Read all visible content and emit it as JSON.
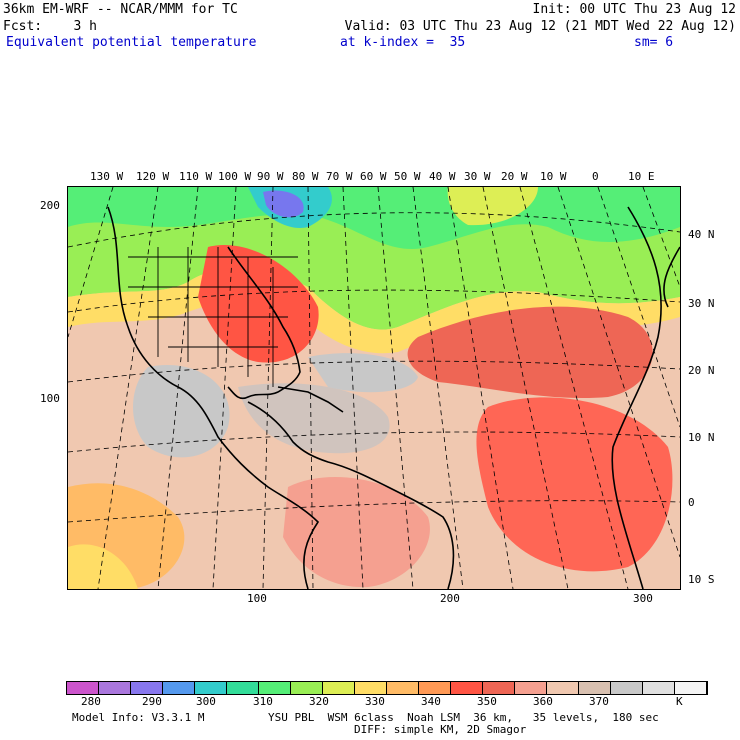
{
  "header": {
    "model_line": "36km EM-WRF -- NCAR/MMM for TC",
    "init_line": "Init: 00 UTC Thu 23 Aug 12",
    "fcst_line": "Fcst:    3 h",
    "valid_line": "Valid: 03 UTC Thu 23 Aug 12 (21 MDT Wed 22 Aug 12)",
    "field_name": "Equivalent potential temperature",
    "level_text": "at k-index =  35",
    "smoothing": "sm= 6"
  },
  "map": {
    "top_longitude_labels": [
      "130 W",
      "120 W",
      "110 W",
      "100 W",
      "90 W",
      "80 W",
      "70 W",
      "60 W",
      "50 W",
      "40 W",
      "30 W",
      "20 W",
      "10 W",
      "0",
      "10 E"
    ],
    "right_latitude_labels": [
      "40 N",
      "30 N",
      "20 N",
      "10 N",
      "0",
      "10 S"
    ],
    "left_grid_labels": [
      "200",
      "100"
    ],
    "bottom_grid_labels": [
      "100",
      "200",
      "300"
    ]
  },
  "colorbar": {
    "colors": [
      "#cc55cc",
      "#aa77dd",
      "#8877ee",
      "#5599ee",
      "#33cccc",
      "#33dd99",
      "#55ee77",
      "#99ee55",
      "#ddee55",
      "#ffdd66",
      "#ffbb66",
      "#ff9955",
      "#ff5544",
      "#ee6655",
      "#f5a090",
      "#f0c8b0",
      "#d8c0b0",
      "#c8c8c8",
      "#e0e0e0",
      "#f4f4f4"
    ],
    "labels": [
      "280",
      "290",
      "300",
      "310",
      "320",
      "330",
      "340",
      "350",
      "360",
      "370"
    ],
    "unit": "K"
  },
  "footer": {
    "model_info": "Model Info: V3.3.1 M",
    "physics_line": "YSU PBL  WSM 6class  Noah LSM  36 km,   35 levels,  180 sec",
    "diff_line": "DIFF: simple KM, 2D Smagor"
  }
}
